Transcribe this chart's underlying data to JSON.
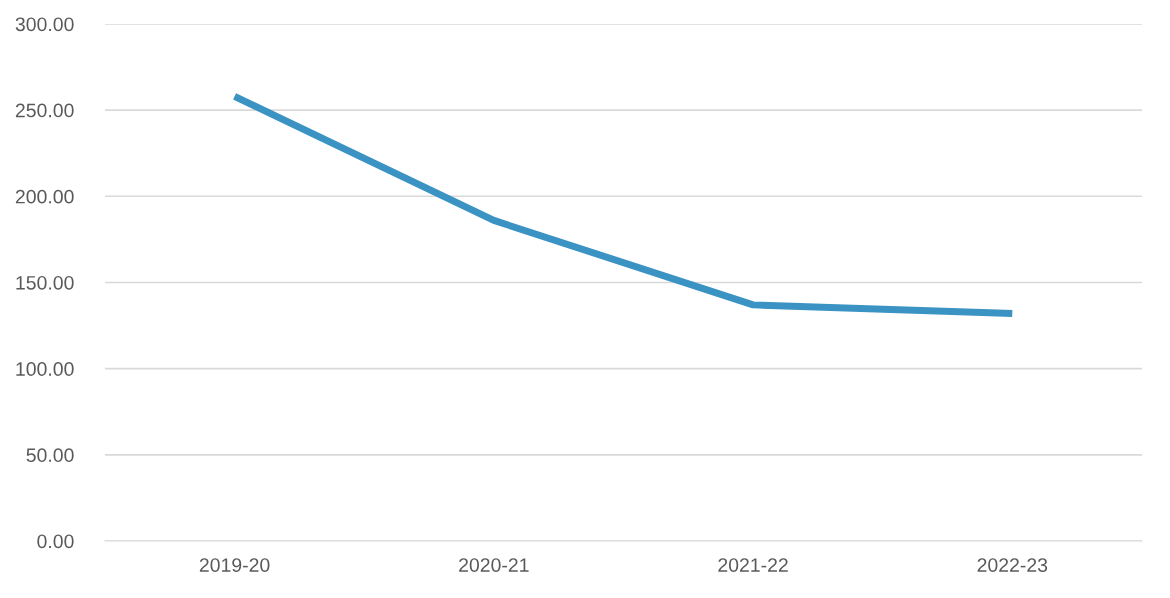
{
  "chart_data": {
    "type": "line",
    "categories": [
      "2019-20",
      "2020-21",
      "2021-22",
      "2022-23"
    ],
    "series": [
      {
        "color": "#3a93c3",
        "values": [
          258,
          186,
          137,
          132
        ]
      }
    ],
    "ylim": [
      0,
      300
    ],
    "yticks": [
      {
        "value": 0,
        "label": "0.00"
      },
      {
        "value": 50,
        "label": "50.00"
      },
      {
        "value": 100,
        "label": "100.00"
      },
      {
        "value": 150,
        "label": "150.00"
      },
      {
        "value": 200,
        "label": "200.00"
      },
      {
        "value": 250,
        "label": "250.00"
      },
      {
        "value": 300,
        "label": "300.00"
      }
    ],
    "grid": "y",
    "marker": "none",
    "line_style": "solid",
    "legend": false
  }
}
